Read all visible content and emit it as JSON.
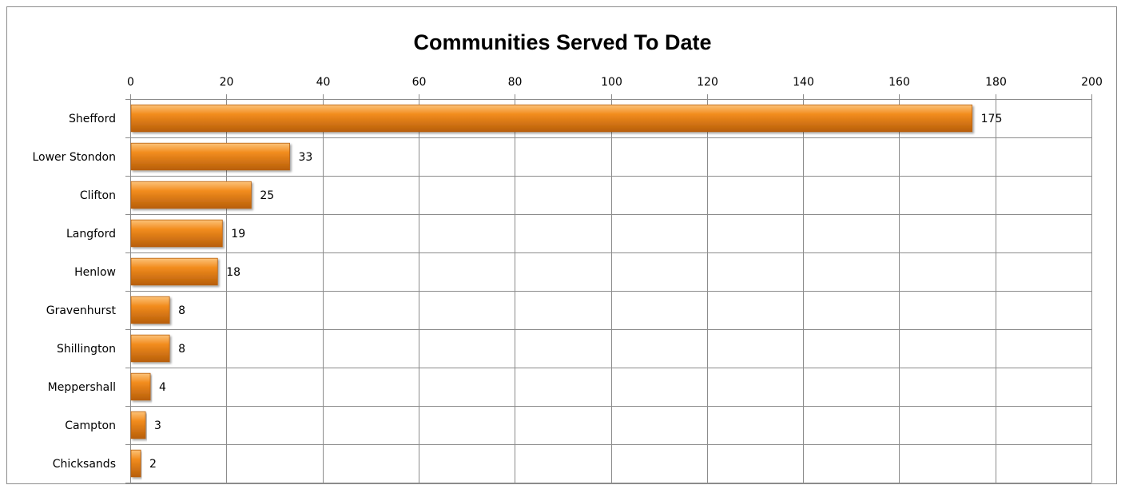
{
  "chart_data": {
    "type": "bar",
    "orientation": "horizontal",
    "title": "Communities Served To Date",
    "xlabel": "",
    "ylabel": "",
    "xlim": [
      0,
      200
    ],
    "ticks": [
      "0",
      "20",
      "40",
      "60",
      "80",
      "100",
      "120",
      "140",
      "160",
      "180",
      "200"
    ],
    "tick_values": [
      0,
      20,
      40,
      60,
      80,
      100,
      120,
      140,
      160,
      180,
      200
    ],
    "categories": [
      "Shefford",
      "Lower Stondon",
      "Clifton",
      "Langford",
      "Henlow",
      "Gravenhurst",
      "Shillington",
      "Meppershall",
      "Campton",
      "Chicksands"
    ],
    "values": [
      175,
      33,
      25,
      19,
      18,
      8,
      8,
      4,
      3,
      2
    ],
    "value_labels": [
      "175",
      "33",
      "25",
      "19",
      "18",
      "8",
      "8",
      "4",
      "3",
      "2"
    ],
    "grid": true,
    "axis_position": "top",
    "legend": "none",
    "bar_color": "#f28c1e",
    "bar_highlight_color": "#fcc37a",
    "bar_shadow_color": "#b85f0a",
    "grid_color": "#8c8c8c"
  }
}
